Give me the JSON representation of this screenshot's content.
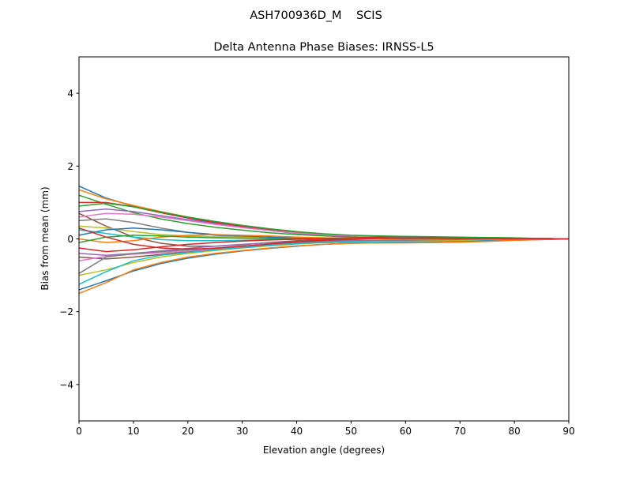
{
  "suptitle": "ASH700936D_M    SCIS",
  "chart_data": {
    "type": "line",
    "title": "Delta Antenna Phase Biases: IRNSS-L5",
    "xlabel": "Elevation angle (degrees)",
    "ylabel": "Bias from mean (mm)",
    "xlim": [
      0,
      90
    ],
    "ylim": [
      -5,
      5
    ],
    "xticks": [
      0,
      10,
      20,
      30,
      40,
      50,
      60,
      70,
      80,
      90
    ],
    "yticks": [
      -4,
      -2,
      0,
      2,
      4
    ],
    "ytick_labels": [
      "−4",
      "−2",
      "0",
      "2",
      "4"
    ],
    "grid": false,
    "legend": "none",
    "colors": [
      "#1f77b4",
      "#ff7f0e",
      "#2ca02c",
      "#d62728",
      "#9467bd",
      "#8c564b",
      "#e377c2",
      "#7f7f7f",
      "#bcbd22",
      "#17becf"
    ],
    "x": [
      0,
      5,
      10,
      15,
      20,
      25,
      30,
      35,
      40,
      45,
      50,
      55,
      60,
      65,
      70,
      75,
      80,
      85,
      90
    ],
    "series": [
      {
        "values": [
          1.45,
          1.12,
          0.9,
          0.72,
          0.57,
          0.44,
          0.33,
          0.23,
          0.15,
          0.1,
          0.07,
          0.05,
          0.04,
          0.03,
          0.02,
          0.02,
          0.01,
          0.01,
          0
        ]
      },
      {
        "values": [
          1.35,
          1.1,
          0.92,
          0.75,
          0.6,
          0.47,
          0.36,
          0.26,
          0.18,
          0.12,
          0.09,
          0.07,
          0.06,
          0.05,
          0.04,
          0.03,
          0.02,
          0.01,
          0
        ]
      },
      {
        "values": [
          1.2,
          0.95,
          0.72,
          0.55,
          0.42,
          0.32,
          0.24,
          0.17,
          0.12,
          0.08,
          0.06,
          0.05,
          0.05,
          0.04,
          0.03,
          0.02,
          0.01,
          0.01,
          0
        ]
      },
      {
        "values": [
          1.0,
          1.0,
          0.88,
          0.72,
          0.58,
          0.45,
          0.34,
          0.25,
          0.17,
          0.11,
          0.08,
          0.06,
          0.05,
          0.04,
          0.03,
          0.02,
          0.02,
          0.01,
          0
        ]
      },
      {
        "values": [
          0.75,
          0.82,
          0.75,
          0.64,
          0.53,
          0.42,
          0.32,
          0.23,
          0.16,
          0.11,
          0.08,
          0.07,
          0.06,
          0.05,
          0.04,
          0.03,
          0.02,
          0.01,
          0
        ]
      },
      {
        "values": [
          0.7,
          0.35,
          0.05,
          -0.12,
          -0.2,
          -0.2,
          -0.16,
          -0.1,
          -0.05,
          -0.02,
          0,
          0.02,
          0.02,
          0.02,
          0.01,
          0.01,
          0,
          0,
          0
        ]
      },
      {
        "values": [
          0.6,
          0.7,
          0.68,
          0.6,
          0.5,
          0.4,
          0.31,
          0.23,
          0.16,
          0.11,
          0.08,
          0.06,
          0.05,
          0.04,
          0.03,
          0.02,
          0.02,
          0.01,
          0
        ]
      },
      {
        "values": [
          0.5,
          0.55,
          0.45,
          0.3,
          0.18,
          0.1,
          0.06,
          0.04,
          0.03,
          0.02,
          0.02,
          0.01,
          0.01,
          0.01,
          0,
          0,
          0,
          0,
          0
        ]
      },
      {
        "values": [
          0.35,
          0.3,
          0.2,
          0.12,
          0.08,
          0.06,
          0.05,
          0.05,
          0.04,
          0.03,
          0.03,
          0.02,
          0.02,
          0.02,
          0.01,
          0.01,
          0,
          0,
          0
        ]
      },
      {
        "values": [
          0.25,
          0.15,
          0.05,
          -0.02,
          -0.05,
          -0.05,
          -0.04,
          -0.02,
          0,
          0.02,
          0.03,
          0.04,
          0.04,
          0.03,
          0.02,
          0.02,
          0.01,
          0,
          0
        ]
      },
      {
        "values": [
          0.1,
          0.25,
          0.3,
          0.25,
          0.18,
          0.12,
          0.08,
          0.05,
          0.03,
          0.02,
          0.01,
          0,
          -0.01,
          -0.01,
          -0.01,
          0,
          0,
          0,
          0
        ]
      },
      {
        "values": [
          0,
          -0.1,
          -0.05,
          0.05,
          0.1,
          0.12,
          0.1,
          0.08,
          0.05,
          0.03,
          0.01,
          -0.01,
          -0.02,
          -0.02,
          -0.02,
          -0.01,
          -0.01,
          0,
          0
        ]
      },
      {
        "values": [
          -0.1,
          0.05,
          0.1,
          0.08,
          0.05,
          0.03,
          0.02,
          0.01,
          0,
          -0.02,
          -0.04,
          -0.05,
          -0.05,
          -0.04,
          -0.03,
          -0.02,
          -0.01,
          0,
          0
        ]
      },
      {
        "values": [
          -0.25,
          -0.35,
          -0.3,
          -0.22,
          -0.15,
          -0.1,
          -0.06,
          -0.03,
          -0.01,
          0.01,
          0.03,
          0.05,
          0.06,
          0.05,
          0.04,
          0.03,
          0.02,
          0.01,
          0
        ]
      },
      {
        "values": [
          -0.4,
          -0.45,
          -0.4,
          -0.33,
          -0.26,
          -0.2,
          -0.15,
          -0.11,
          -0.08,
          -0.06,
          -0.05,
          -0.05,
          -0.05,
          -0.04,
          -0.03,
          -0.02,
          -0.01,
          -0.01,
          0
        ]
      },
      {
        "values": [
          -0.5,
          -0.55,
          -0.5,
          -0.43,
          -0.35,
          -0.28,
          -0.22,
          -0.17,
          -0.13,
          -0.1,
          -0.08,
          -0.07,
          -0.07,
          -0.06,
          -0.05,
          -0.04,
          -0.02,
          -0.01,
          0
        ]
      },
      {
        "values": [
          -0.6,
          -0.48,
          -0.42,
          -0.38,
          -0.33,
          -0.27,
          -0.21,
          -0.16,
          -0.12,
          -0.09,
          -0.08,
          -0.08,
          -0.08,
          -0.07,
          -0.06,
          -0.05,
          -0.03,
          -0.01,
          0
        ]
      },
      {
        "values": [
          -0.95,
          -0.5,
          -0.4,
          -0.35,
          -0.3,
          -0.25,
          -0.2,
          -0.15,
          -0.11,
          -0.08,
          -0.06,
          -0.05,
          -0.04,
          -0.04,
          -0.03,
          -0.02,
          -0.01,
          0,
          0
        ]
      },
      {
        "values": [
          -1.0,
          -0.85,
          -0.65,
          -0.5,
          -0.4,
          -0.32,
          -0.25,
          -0.19,
          -0.14,
          -0.1,
          -0.08,
          -0.07,
          -0.07,
          -0.06,
          -0.05,
          -0.04,
          -0.03,
          -0.01,
          0
        ]
      },
      {
        "values": [
          -1.25,
          -0.9,
          -0.6,
          -0.45,
          -0.37,
          -0.3,
          -0.24,
          -0.18,
          -0.13,
          -0.1,
          -0.09,
          -0.09,
          -0.09,
          -0.08,
          -0.07,
          -0.05,
          -0.03,
          -0.01,
          0
        ]
      },
      {
        "values": [
          -1.4,
          -1.15,
          -0.88,
          -0.68,
          -0.53,
          -0.42,
          -0.33,
          -0.26,
          -0.2,
          -0.15,
          -0.12,
          -0.11,
          -0.1,
          -0.1,
          -0.08,
          -0.06,
          -0.04,
          -0.02,
          0
        ]
      },
      {
        "values": [
          -1.5,
          -1.2,
          -0.85,
          -0.65,
          -0.5,
          -0.4,
          -0.32,
          -0.25,
          -0.19,
          -0.15,
          -0.12,
          -0.11,
          -0.11,
          -0.1,
          -0.09,
          -0.07,
          -0.04,
          -0.02,
          0
        ]
      },
      {
        "values": [
          0.9,
          0.98,
          0.88,
          0.74,
          0.6,
          0.48,
          0.37,
          0.28,
          0.2,
          0.14,
          0.1,
          0.08,
          0.07,
          0.06,
          0.05,
          0.04,
          0.03,
          0.01,
          0
        ]
      },
      {
        "values": [
          0.3,
          0.05,
          -0.15,
          -0.25,
          -0.28,
          -0.26,
          -0.2,
          -0.14,
          -0.08,
          -0.04,
          -0.01,
          0.01,
          0.02,
          0.02,
          0.01,
          0.01,
          0,
          0,
          0
        ]
      }
    ]
  }
}
